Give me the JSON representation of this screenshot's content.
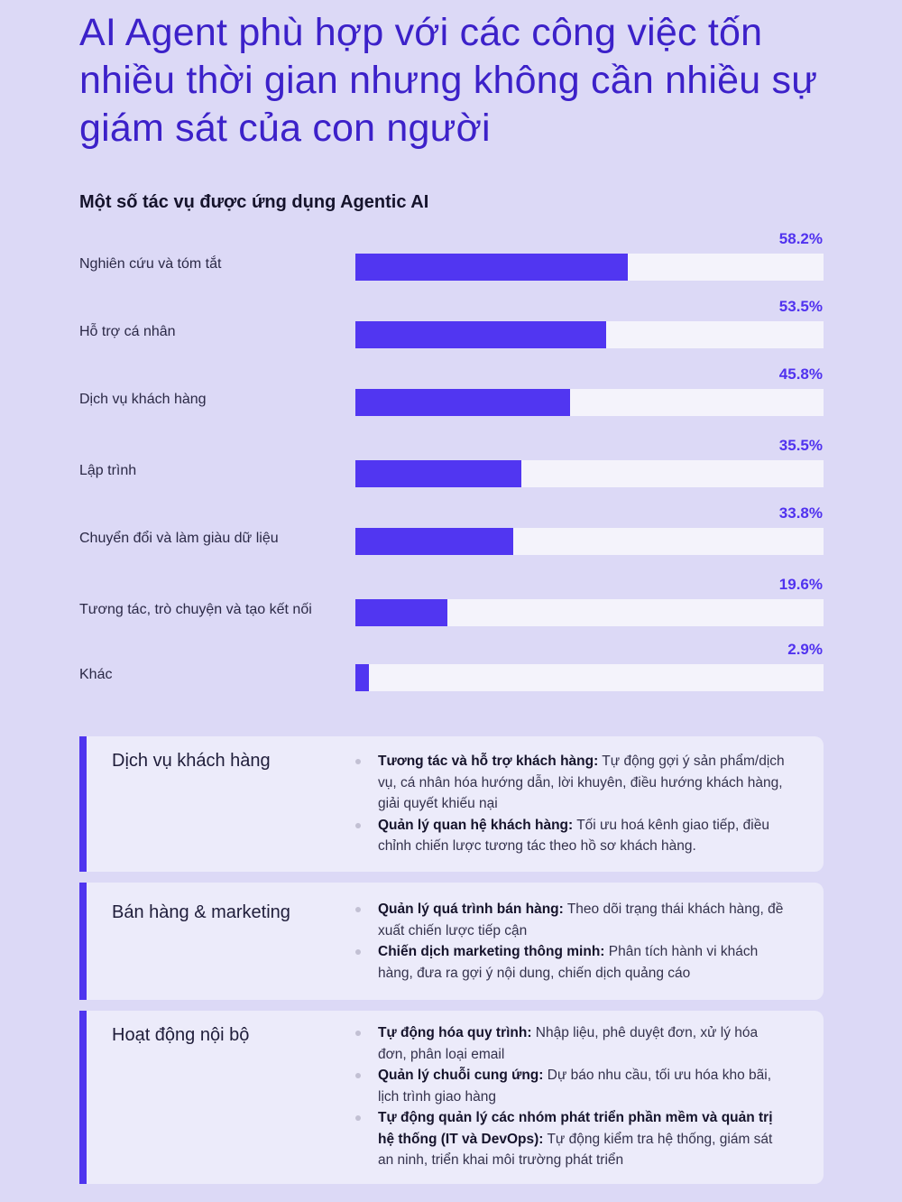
{
  "title": "AI Agent phù hợp với các công việc tốn nhiều thời gian nhưng không cần nhiều sự giám sát của con người",
  "colors": {
    "accent": "#5136f1",
    "title": "#3c21c9",
    "background": "#dcd9f6",
    "track": "#f4f3fb",
    "card": "#ecebfa"
  },
  "chart_data": {
    "type": "bar",
    "orientation": "horizontal",
    "title": "Một số tác vụ được ứng dụng Agentic AI",
    "categories": [
      "Nghiên cứu và tóm tắt",
      "Hỗ trợ cá nhân",
      "Dịch vụ khách hàng",
      "Lập trình",
      "Chuyển đổi và làm giàu dữ liệu",
      "Tương tác, trò chuyện và tạo kết nối",
      "Khác"
    ],
    "values": [
      58.2,
      53.5,
      45.8,
      35.5,
      33.8,
      19.6,
      2.9
    ],
    "value_labels": [
      "58.2%",
      "53.5%",
      "45.8%",
      "35.5%",
      "33.8%",
      "19.6%",
      "2.9%"
    ],
    "unit": "%",
    "xlim": [
      0,
      100
    ],
    "xlabel": "",
    "ylabel": ""
  },
  "cards": [
    {
      "title": "Dịch vụ khách hàng",
      "items": [
        {
          "strong": "Tương tác và hỗ trợ khách hàng:",
          "text": " Tự động gợi ý sản phẩm/dịch vụ, cá nhân hóa hướng dẫn, lời khuyên, điều hướng khách hàng, giải quyết khiếu nại"
        },
        {
          "strong": "Quản lý quan hệ khách hàng:",
          "text": " Tối ưu hoá kênh giao tiếp, điều chỉnh chiến lược tương tác theo hồ sơ khách hàng."
        }
      ]
    },
    {
      "title": "Bán hàng & marketing",
      "items": [
        {
          "strong": "Quản lý quá trình bán hàng:",
          "text": " Theo dõi trạng thái khách hàng, đề xuất chiến lược tiếp cận"
        },
        {
          "strong": "Chiến dịch marketing thông minh:",
          "text": " Phân tích hành vi khách hàng, đưa ra gợi ý nội dung, chiến dịch quảng cáo"
        }
      ]
    },
    {
      "title": "Hoạt động nội bộ",
      "items": [
        {
          "strong": "Tự động hóa quy trình:",
          "text": " Nhập liệu, phê duyệt đơn, xử lý hóa đơn, phân loại email"
        },
        {
          "strong": "Quản lý chuỗi cung ứng:",
          "text": " Dự báo nhu cầu, tối ưu hóa kho bãi, lịch trình giao hàng"
        },
        {
          "strong": "Tự động quản lý các nhóm phát triển phần mềm và quản trị hệ thống (IT và DevOps):",
          "text": " Tự động kiểm tra hệ thống, giám sát an ninh, triển khai môi trường phát triển"
        }
      ]
    }
  ]
}
